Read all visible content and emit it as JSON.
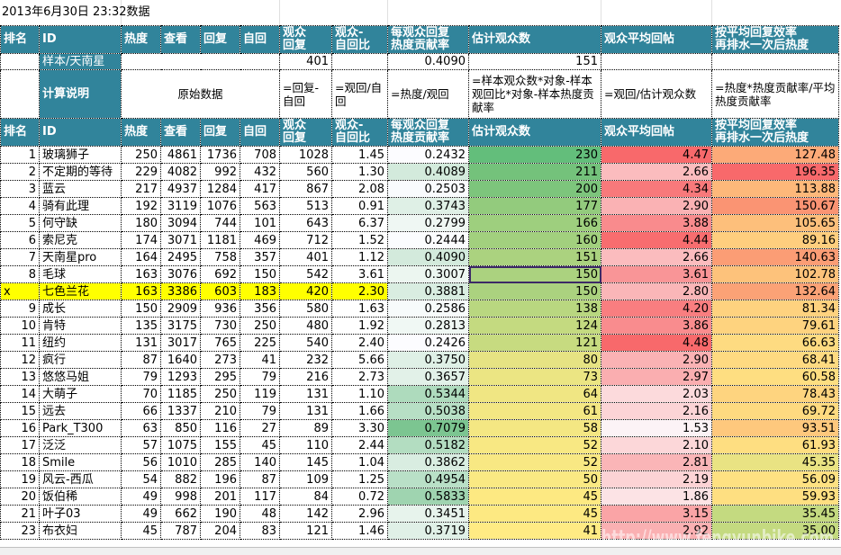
{
  "title": "2013年6月30日 23:32数据",
  "headers": [
    "排名",
    "ID",
    "热度",
    "查看",
    "回复",
    "自回",
    "观众\n回复",
    "观众-\n自回比",
    "每观众回复\n热度贡献率",
    "估计观众数",
    "观众平均回帖",
    "按平均回复效率\n再排水一次后热度"
  ],
  "header_lines": {
    "c6a": "观众",
    "c6b": "回复",
    "c7a": "观众-",
    "c7b": "自回比",
    "c8a": "每观众回复",
    "c8b": "热度贡献率",
    "c11a": "按平均回复效率",
    "c11b": "再排水一次后热度"
  },
  "sample": {
    "label": "样本/天南星",
    "viewer_reply": "401",
    "contribution": "0.4090",
    "est_viewers": "151"
  },
  "explanation": {
    "label": "计算说明",
    "raw": "原始数据",
    "viewer_reply": "=回复-自回",
    "ratio": "=观回/自回",
    "contribution": "=热度/观回",
    "est_viewers": "=样本观众数*对象-样本观回比*对象-样本热度贡献率",
    "avg_post": "=观回/估计观众数",
    "rescore": "=热度*热度贡献率/平均热度贡献率"
  },
  "rows": [
    {
      "rank": "1",
      "id": "玻璃狮子",
      "heat": "250",
      "views": "4861",
      "replies": "1736",
      "self": "708",
      "vreply": "1028",
      "ratio": "1.45",
      "contrib": "0.2432",
      "est": "230",
      "avg": "4.47",
      "score": "127.48",
      "c_contrib": "#fcfcff",
      "c_est": "#63be7b",
      "c_avg": "#f8696b",
      "c_score": "#fcaa78"
    },
    {
      "rank": "2",
      "id": "不定期的等待",
      "heat": "229",
      "views": "4082",
      "replies": "992",
      "self": "432",
      "vreply": "560",
      "ratio": "1.30",
      "contrib": "0.4089",
      "est": "211",
      "avg": "2.66",
      "score": "196.35",
      "c_contrib": "#d3eadc",
      "c_est": "#74c27b",
      "c_avg": "#fbbcbe",
      "c_score": "#f8696b"
    },
    {
      "rank": "3",
      "id": "蓝云",
      "heat": "217",
      "views": "4937",
      "replies": "1284",
      "self": "417",
      "vreply": "867",
      "ratio": "2.08",
      "contrib": "0.2503",
      "est": "200",
      "avg": "4.34",
      "score": "113.88",
      "c_contrib": "#f9fbfd",
      "c_est": "#7dc57c",
      "c_avg": "#f8797b",
      "c_score": "#fdb87a"
    },
    {
      "rank": "4",
      "id": "骑有此理",
      "heat": "192",
      "views": "3119",
      "replies": "1076",
      "self": "563",
      "vreply": "513",
      "ratio": "0.91",
      "contrib": "0.3743",
      "est": "177",
      "avg": "2.90",
      "score": "150.67",
      "c_contrib": "#dff0e6",
      "c_est": "#93cb7d",
      "c_avg": "#fab2b4",
      "c_score": "#fa9473"
    },
    {
      "rank": "5",
      "id": "何守缺",
      "heat": "180",
      "views": "3094",
      "replies": "744",
      "self": "101",
      "vreply": "643",
      "ratio": "6.37",
      "contrib": "0.2799",
      "est": "166",
      "avg": "3.88",
      "score": "105.65",
      "c_contrib": "#eff7f3",
      "c_est": "#9ecf7e",
      "c_avg": "#f98b8d",
      "c_score": "#fdbf7b"
    },
    {
      "rank": "6",
      "id": "索尼克",
      "heat": "174",
      "views": "3071",
      "replies": "1181",
      "self": "469",
      "vreply": "712",
      "ratio": "1.52",
      "contrib": "0.2444",
      "est": "160",
      "avg": "4.44",
      "score": "89.16",
      "c_contrib": "#fbfcfe",
      "c_est": "#a2d07e",
      "c_avg": "#f86d6f",
      "c_score": "#fece7e"
    },
    {
      "rank": "7",
      "id": "天南星pro",
      "heat": "164",
      "views": "2495",
      "replies": "758",
      "self": "357",
      "vreply": "401",
      "ratio": "1.12",
      "contrib": "0.4090",
      "est": "151",
      "avg": "2.66",
      "score": "140.63",
      "c_contrib": "#d3eadc",
      "c_est": "#abd27f",
      "c_avg": "#fbbcbe",
      "c_score": "#fb9d75"
    },
    {
      "rank": "8",
      "id": "毛球",
      "heat": "163",
      "views": "3076",
      "replies": "692",
      "self": "150",
      "vreply": "542",
      "ratio": "3.61",
      "contrib": "0.3007",
      "est": "150",
      "avg": "3.61",
      "score": "102.78",
      "c_contrib": "#ecf6f0",
      "c_est": "#abd27f",
      "c_avg": "#f99597",
      "c_score": "#fdc27b",
      "selected": true
    },
    {
      "rank": "x",
      "id": "七色兰花",
      "heat": "163",
      "views": "3386",
      "replies": "603",
      "self": "183",
      "vreply": "420",
      "ratio": "2.30",
      "contrib": "0.3881",
      "est": "150",
      "avg": "2.80",
      "score": "132.64",
      "c_contrib": "#d9edE1",
      "c_est": "#abd27f",
      "c_avg": "#fab6b8",
      "c_score": "#fba276",
      "highlight": true
    },
    {
      "rank": "9",
      "id": "成长",
      "heat": "150",
      "views": "2909",
      "replies": "936",
      "self": "356",
      "vreply": "580",
      "ratio": "1.63",
      "contrib": "0.2586",
      "est": "138",
      "avg": "4.20",
      "score": "81.34",
      "c_contrib": "#f7fbfb",
      "c_est": "#b9d780",
      "c_avg": "#f97e80",
      "c_score": "#fed27f"
    },
    {
      "rank": "10",
      "id": "肯特",
      "heat": "135",
      "views": "3175",
      "replies": "730",
      "self": "250",
      "vreply": "480",
      "ratio": "1.92",
      "contrib": "0.2813",
      "est": "124",
      "avg": "3.86",
      "score": "79.61",
      "c_contrib": "#f0f8f4",
      "c_est": "#c4da80",
      "c_avg": "#f98c8e",
      "c_score": "#fed37f"
    },
    {
      "rank": "11",
      "id": "纽约",
      "heat": "131",
      "views": "3017",
      "replies": "765",
      "self": "225",
      "vreply": "540",
      "ratio": "2.40",
      "contrib": "0.2426",
      "est": "121",
      "avg": "4.48",
      "score": "66.63",
      "c_contrib": "#fcfcff",
      "c_est": "#c7db80",
      "c_avg": "#f8696b",
      "c_score": "#fedb81"
    },
    {
      "rank": "12",
      "id": "疯行",
      "heat": "87",
      "views": "1640",
      "replies": "273",
      "self": "41",
      "vreply": "232",
      "ratio": "5.66",
      "contrib": "0.3750",
      "est": "80",
      "avg": "2.90",
      "score": "68.41",
      "c_contrib": "#dff0e6",
      "c_est": "#e6e383",
      "c_avg": "#fab2b4",
      "c_score": "#feda81"
    },
    {
      "rank": "13",
      "id": "悠悠马姐",
      "heat": "79",
      "views": "1293",
      "replies": "295",
      "self": "79",
      "vreply": "216",
      "ratio": "2.73",
      "contrib": "0.3657",
      "est": "73",
      "avg": "2.97",
      "score": "60.58",
      "c_contrib": "#e2f1e8",
      "c_est": "#ebe583",
      "c_avg": "#faaeb0",
      "c_score": "#fede81"
    },
    {
      "rank": "14",
      "id": "大萌子",
      "heat": "70",
      "views": "1185",
      "replies": "250",
      "self": "119",
      "vreply": "131",
      "ratio": "1.10",
      "contrib": "0.5344",
      "est": "64",
      "avg": "2.03",
      "score": "78.43",
      "c_contrib": "#aedbbd",
      "c_est": "#f0e683",
      "c_avg": "#fcdadc",
      "c_score": "#fed47f"
    },
    {
      "rank": "15",
      "id": "远去",
      "heat": "66",
      "views": "1337",
      "replies": "210",
      "self": "79",
      "vreply": "131",
      "ratio": "1.66",
      "contrib": "0.5038",
      "est": "61",
      "avg": "2.16",
      "score": "69.72",
      "c_contrib": "#b7dfc5",
      "c_est": "#f3e783",
      "c_avg": "#fcd4d6",
      "c_score": "#feda80"
    },
    {
      "rank": "16",
      "id": "Park_T300",
      "heat": "63",
      "views": "850",
      "replies": "116",
      "self": "27",
      "vreply": "89",
      "ratio": "3.30",
      "contrib": "0.7079",
      "est": "58",
      "avg": "1.53",
      "score": "93.51",
      "c_contrib": "#7cc591",
      "c_est": "#f4e783",
      "c_avg": "#fcf3f6",
      "c_score": "#fec87d"
    },
    {
      "rank": "17",
      "id": "泛泛",
      "heat": "57",
      "views": "1075",
      "replies": "155",
      "self": "45",
      "vreply": "110",
      "ratio": "2.44",
      "contrib": "0.5182",
      "est": "52",
      "avg": "2.10",
      "score": "61.93",
      "c_contrib": "#b3ddc1",
      "c_est": "#f8e883",
      "c_avg": "#fcd7d9",
      "c_score": "#fede81"
    },
    {
      "rank": "18",
      "id": "Smile",
      "heat": "56",
      "views": "1010",
      "replies": "285",
      "self": "140",
      "vreply": "145",
      "ratio": "1.04",
      "contrib": "0.3862",
      "est": "52",
      "avg": "2.81",
      "score": "45.35",
      "c_contrib": "#d9ede1",
      "c_est": "#f8e883",
      "c_avg": "#fab5b7",
      "c_score": "#e9e383"
    },
    {
      "rank": "19",
      "id": "风云-西瓜",
      "heat": "54",
      "views": "882",
      "replies": "196",
      "self": "87",
      "vreply": "109",
      "ratio": "1.25",
      "contrib": "0.4954",
      "est": "50",
      "avg": "2.19",
      "score": "56.09",
      "c_contrib": "#b9e0c7",
      "c_est": "#fae983",
      "c_avg": "#fcd3d5",
      "c_score": "#fee182"
    },
    {
      "rank": "20",
      "id": "饭伯稀",
      "heat": "49",
      "views": "998",
      "replies": "201",
      "self": "117",
      "vreply": "84",
      "ratio": "0.72",
      "contrib": "0.5833",
      "est": "45",
      "avg": "1.86",
      "score": "59.93",
      "c_contrib": "#9fd4b0",
      "c_est": "#fde982",
      "c_avg": "#fce3e5",
      "c_score": "#fedf81"
    },
    {
      "rank": "21",
      "id": "叶子03",
      "heat": "49",
      "views": "662",
      "replies": "190",
      "self": "48",
      "vreply": "142",
      "ratio": "2.96",
      "contrib": "0.3451",
      "est": "45",
      "avg": "3.15",
      "score": "35.45",
      "c_contrib": "#e7f3ec",
      "c_est": "#fde982",
      "c_avg": "#faa4a6",
      "c_score": "#c4da80"
    },
    {
      "rank": "23",
      "id": "布衣妇",
      "heat": "45",
      "views": "787",
      "replies": "204",
      "self": "83",
      "vreply": "121",
      "ratio": "1.46",
      "contrib": "0.3719",
      "est": "41",
      "avg": "2.92",
      "score": "35.00",
      "c_contrib": "#e0f0e7",
      "c_est": "#ffeb84",
      "c_avg": "#fab0b2",
      "c_score": "#c4da80"
    }
  ],
  "watermark": "http://www.fengyunbike.com",
  "colors": {
    "header_bg": "#31849b",
    "header_text": "#ffffff",
    "highlight_row": "#ffff00"
  }
}
